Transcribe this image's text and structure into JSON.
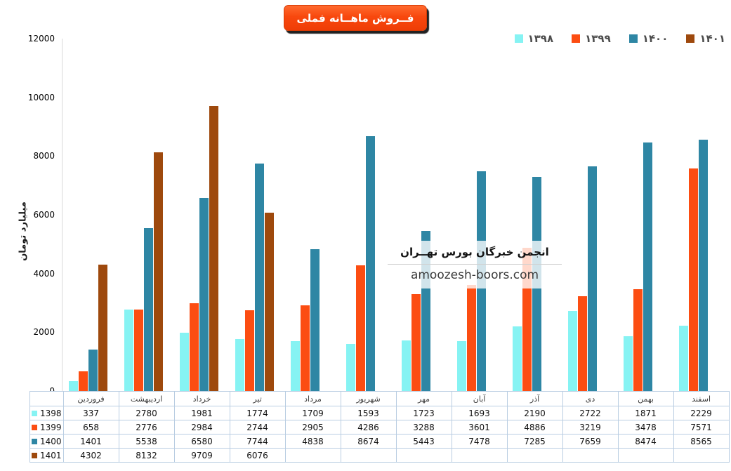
{
  "title": "فــروش ماهــانه فملی",
  "watermark": {
    "line1": "انجمن خبرگان بورس تهــران",
    "line2": "amoozesh-boors.com"
  },
  "chart_data": {
    "type": "bar",
    "title": "فــروش ماهــانه فملی",
    "xlabel": "",
    "ylabel": "میلیارد تومان",
    "ylim": [
      0,
      12000
    ],
    "y_ticks": [
      0,
      2000,
      4000,
      6000,
      8000,
      10000,
      12000
    ],
    "grid": false,
    "legend_position": "top-right",
    "categories": [
      "فروردین",
      "اردیبهشت",
      "خرداد",
      "تیر",
      "مرداد",
      "شهریور",
      "مهر",
      "آبان",
      "آذر",
      "دی",
      "بهمن",
      "اسفند"
    ],
    "series": [
      {
        "name": "1398",
        "legend_label": "۱۳۹۸",
        "color": "#86f3f3",
        "values": [
          337,
          2780,
          1981,
          1774,
          1709,
          1593,
          1723,
          1693,
          2190,
          2722,
          1871,
          2229
        ]
      },
      {
        "name": "1399",
        "legend_label": "۱۳۹۹",
        "color": "#fc4d12",
        "values": [
          658,
          2776,
          2984,
          2744,
          2905,
          4286,
          3288,
          3601,
          4886,
          3219,
          3478,
          7571
        ]
      },
      {
        "name": "1400",
        "legend_label": "۱۴۰۰",
        "color": "#2e86a4",
        "values": [
          1401,
          5538,
          6580,
          7744,
          4838,
          8674,
          5443,
          7478,
          7285,
          7659,
          8474,
          8565
        ]
      },
      {
        "name": "1401",
        "legend_label": "۱۴۰۱",
        "color": "#9e490d",
        "values": [
          4302,
          8132,
          9709,
          6076,
          null,
          null,
          null,
          null,
          null,
          null,
          null,
          null
        ]
      }
    ]
  }
}
